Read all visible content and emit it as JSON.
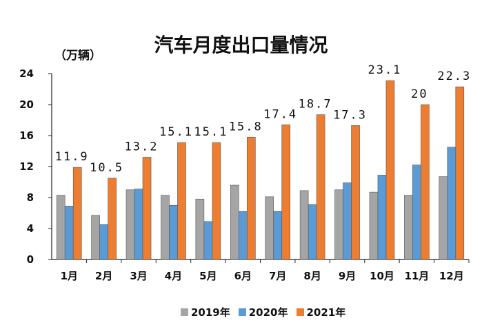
{
  "chart_data": {
    "type": "bar",
    "title": "汽车月度出口量情况",
    "ylabel": "（万辆）",
    "ylim": [
      0,
      24
    ],
    "yticks": [
      0,
      4,
      8,
      12,
      16,
      20,
      24
    ],
    "categories": [
      "1月",
      "2月",
      "3月",
      "4月",
      "5月",
      "6月",
      "7月",
      "8月",
      "9月",
      "10月",
      "11月",
      "12月"
    ],
    "series": [
      {
        "name": "2019年",
        "color": "#A5A5A5",
        "values": [
          8.3,
          5.7,
          9.0,
          8.3,
          7.8,
          9.6,
          8.1,
          8.9,
          9.0,
          8.7,
          8.3,
          10.7
        ]
      },
      {
        "name": "2020年",
        "color": "#5B9BD5",
        "values": [
          6.9,
          4.5,
          9.1,
          7.0,
          4.9,
          6.2,
          6.2,
          7.1,
          9.9,
          10.9,
          12.2,
          14.5
        ]
      },
      {
        "name": "2021年",
        "color": "#ED7D31",
        "values": [
          11.9,
          10.5,
          13.2,
          15.1,
          15.1,
          15.8,
          17.4,
          18.7,
          17.3,
          23.1,
          20,
          22.3
        ]
      }
    ],
    "data_labels": [
      "11.9",
      "10.5",
      "13.2",
      "15.1",
      "15.1",
      "15.8",
      "17.4",
      "18.7",
      "17.3",
      "23.1",
      "20",
      "22.3"
    ],
    "legend_position": "bottom"
  }
}
